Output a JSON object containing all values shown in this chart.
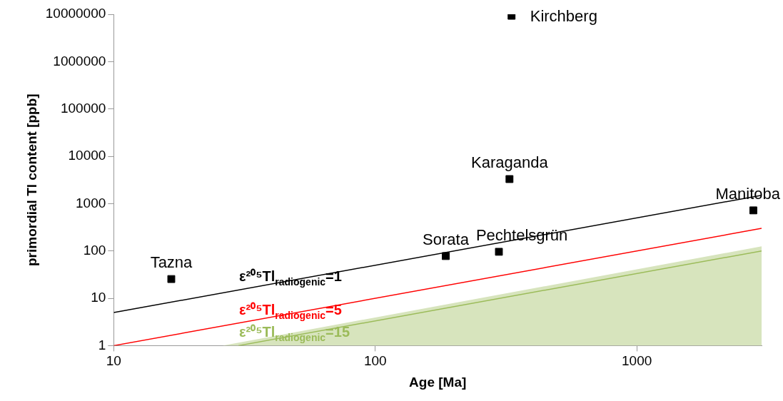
{
  "chart_data": {
    "type": "scatter",
    "xlabel": "Age [Ma]",
    "ylabel": "primordial Tl content [ppb]",
    "log": "xy",
    "xlim": [
      10,
      3000
    ],
    "xticks": [
      10,
      100,
      1000
    ],
    "ylim": [
      1,
      10000000
    ],
    "yticks": [
      1,
      10,
      100,
      1000,
      10000,
      100000,
      1000000,
      10000000
    ],
    "grid": false,
    "legend": false,
    "series": [
      {
        "type": "area",
        "color": "#d7e4bd",
        "x": [
          26,
          3000
        ],
        "values": [
          1,
          125
        ]
      },
      {
        "type": "line",
        "name": "ε²⁰⁵Tl$_{radiogenic}$=1",
        "color": "#000000",
        "x": [
          10,
          3000
        ],
        "values": [
          5,
          1500
        ]
      },
      {
        "type": "line",
        "name": "ε²⁰⁵Tl$_{radiogenic}$=5",
        "color": "#ff0000",
        "x": [
          10,
          3000
        ],
        "values": [
          1,
          300
        ]
      },
      {
        "type": "line",
        "name": "ε²⁰⁵Tl$_{radiogenic}$=15",
        "color": "#9bbb59",
        "x": [
          30,
          3000
        ],
        "values": [
          1,
          100
        ]
      },
      {
        "marker": "square",
        "color": "#000000",
        "x": [
          16.6,
          186,
          297,
          326,
          332,
          2790
        ],
        "values": [
          25.5,
          78,
          96,
          3300,
          9300000,
          720
        ]
      }
    ],
    "annotations": [
      {
        "text": "Tazna",
        "x": 16.6,
        "y": 25.5
      },
      {
        "text": "Sorata",
        "x": 186,
        "y": 78
      },
      {
        "text": "Pechtelsgrün",
        "x": 297,
        "y": 96
      },
      {
        "text": "Karaganda",
        "x": 326,
        "y": 3300
      },
      {
        "text": "Kirchberg",
        "x": 332,
        "y": 9300000
      },
      {
        "text": "Manitoba",
        "x": 2790,
        "y": 720
      }
    ]
  }
}
